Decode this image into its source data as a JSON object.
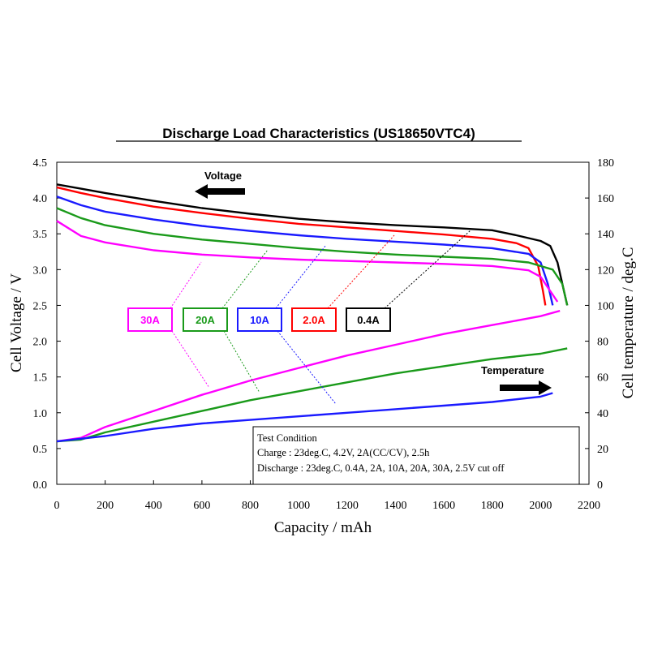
{
  "chart_data": {
    "type": "line",
    "title": "Discharge Load Characteristics (US18650VTC4)",
    "xlabel": "Capacity / mAh",
    "ylabel_left": "Cell Voltage / V",
    "ylabel_right": "Cell temperature / deg.C",
    "xlim": [
      0,
      2200
    ],
    "ylim_left": [
      0.0,
      4.5
    ],
    "ylim_right": [
      0,
      180
    ],
    "x_ticks": [
      "0",
      "200",
      "400",
      "600",
      "800",
      "1000",
      "1200",
      "1400",
      "1600",
      "1800",
      "2000",
      "2200"
    ],
    "y_left_ticks": [
      "0.0",
      "0.5",
      "1.0",
      "1.5",
      "2.0",
      "2.5",
      "3.0",
      "3.5",
      "4.0",
      "4.5"
    ],
    "y_right_ticks": [
      "0",
      "20",
      "40",
      "60",
      "80",
      "100",
      "120",
      "140",
      "160",
      "180"
    ],
    "colors": {
      "30A": "#ff00ff",
      "20A": "#1a9a1a",
      "10A": "#1a1aff",
      "2.0A": "#ff0000",
      "0.4A": "#000000"
    },
    "voltage_series": [
      {
        "name": "0.4A",
        "points": [
          [
            0,
            4.19
          ],
          [
            100,
            4.13
          ],
          [
            200,
            4.07
          ],
          [
            400,
            3.96
          ],
          [
            600,
            3.86
          ],
          [
            800,
            3.78
          ],
          [
            1000,
            3.71
          ],
          [
            1200,
            3.66
          ],
          [
            1400,
            3.62
          ],
          [
            1600,
            3.59
          ],
          [
            1800,
            3.55
          ],
          [
            1900,
            3.48
          ],
          [
            2000,
            3.4
          ],
          [
            2040,
            3.33
          ],
          [
            2070,
            3.1
          ],
          [
            2090,
            2.8
          ],
          [
            2110,
            2.5
          ]
        ]
      },
      {
        "name": "2.0A",
        "points": [
          [
            0,
            4.15
          ],
          [
            100,
            4.07
          ],
          [
            200,
            4.0
          ],
          [
            400,
            3.88
          ],
          [
            600,
            3.79
          ],
          [
            800,
            3.71
          ],
          [
            1000,
            3.64
          ],
          [
            1200,
            3.59
          ],
          [
            1400,
            3.54
          ],
          [
            1600,
            3.49
          ],
          [
            1800,
            3.43
          ],
          [
            1900,
            3.37
          ],
          [
            1950,
            3.3
          ],
          [
            1990,
            3.05
          ],
          [
            2010,
            2.7
          ],
          [
            2020,
            2.5
          ]
        ]
      },
      {
        "name": "10A",
        "points": [
          [
            0,
            4.02
          ],
          [
            100,
            3.9
          ],
          [
            200,
            3.81
          ],
          [
            400,
            3.7
          ],
          [
            600,
            3.61
          ],
          [
            800,
            3.54
          ],
          [
            1000,
            3.48
          ],
          [
            1200,
            3.43
          ],
          [
            1400,
            3.39
          ],
          [
            1600,
            3.35
          ],
          [
            1800,
            3.3
          ],
          [
            1950,
            3.22
          ],
          [
            2000,
            3.1
          ],
          [
            2030,
            2.8
          ],
          [
            2050,
            2.5
          ]
        ]
      },
      {
        "name": "20A",
        "points": [
          [
            0,
            3.86
          ],
          [
            100,
            3.72
          ],
          [
            200,
            3.62
          ],
          [
            400,
            3.5
          ],
          [
            600,
            3.42
          ],
          [
            800,
            3.36
          ],
          [
            1000,
            3.3
          ],
          [
            1200,
            3.25
          ],
          [
            1400,
            3.21
          ],
          [
            1600,
            3.18
          ],
          [
            1800,
            3.15
          ],
          [
            1950,
            3.1
          ],
          [
            2050,
            3.0
          ],
          [
            2090,
            2.8
          ],
          [
            2110,
            2.5
          ]
        ]
      },
      {
        "name": "30A",
        "points": [
          [
            0,
            3.68
          ],
          [
            100,
            3.47
          ],
          [
            200,
            3.38
          ],
          [
            400,
            3.27
          ],
          [
            600,
            3.21
          ],
          [
            800,
            3.17
          ],
          [
            1000,
            3.14
          ],
          [
            1200,
            3.12
          ],
          [
            1400,
            3.1
          ],
          [
            1600,
            3.08
          ],
          [
            1800,
            3.05
          ],
          [
            1950,
            2.99
          ],
          [
            2000,
            2.9
          ],
          [
            2040,
            2.7
          ],
          [
            2070,
            2.55
          ]
        ]
      }
    ],
    "temperature_series": [
      {
        "name": "30A",
        "points": [
          [
            0,
            24
          ],
          [
            100,
            26
          ],
          [
            200,
            32
          ],
          [
            400,
            41
          ],
          [
            600,
            50
          ],
          [
            800,
            58
          ],
          [
            1000,
            65
          ],
          [
            1200,
            72
          ],
          [
            1400,
            78
          ],
          [
            1600,
            84
          ],
          [
            1800,
            89
          ],
          [
            2000,
            94
          ],
          [
            2080,
            97
          ]
        ]
      },
      {
        "name": "20A",
        "points": [
          [
            0,
            24
          ],
          [
            100,
            25
          ],
          [
            200,
            29
          ],
          [
            400,
            35
          ],
          [
            600,
            41
          ],
          [
            800,
            47
          ],
          [
            1000,
            52
          ],
          [
            1200,
            57
          ],
          [
            1400,
            62
          ],
          [
            1600,
            66
          ],
          [
            1800,
            70
          ],
          [
            2000,
            73
          ],
          [
            2110,
            76
          ]
        ]
      },
      {
        "name": "10A",
        "points": [
          [
            0,
            24
          ],
          [
            200,
            27
          ],
          [
            400,
            31
          ],
          [
            600,
            34
          ],
          [
            800,
            36
          ],
          [
            1000,
            38
          ],
          [
            1200,
            40
          ],
          [
            1400,
            42
          ],
          [
            1600,
            44
          ],
          [
            1800,
            46
          ],
          [
            2000,
            49
          ],
          [
            2050,
            51
          ]
        ]
      }
    ],
    "annotations": {
      "voltage_label": "Voltage",
      "temperature_label": "Temperature"
    },
    "legend": [
      "30A",
      "20A",
      "10A",
      "2.0A",
      "0.4A"
    ],
    "test_condition": {
      "heading": "Test Condition",
      "charge": "Charge : 23deg.C, 4.2V, 2A(CC/CV), 2.5h",
      "discharge": "Discharge : 23deg.C, 0.4A, 2A, 10A, 20A, 30A, 2.5V cut off"
    }
  }
}
